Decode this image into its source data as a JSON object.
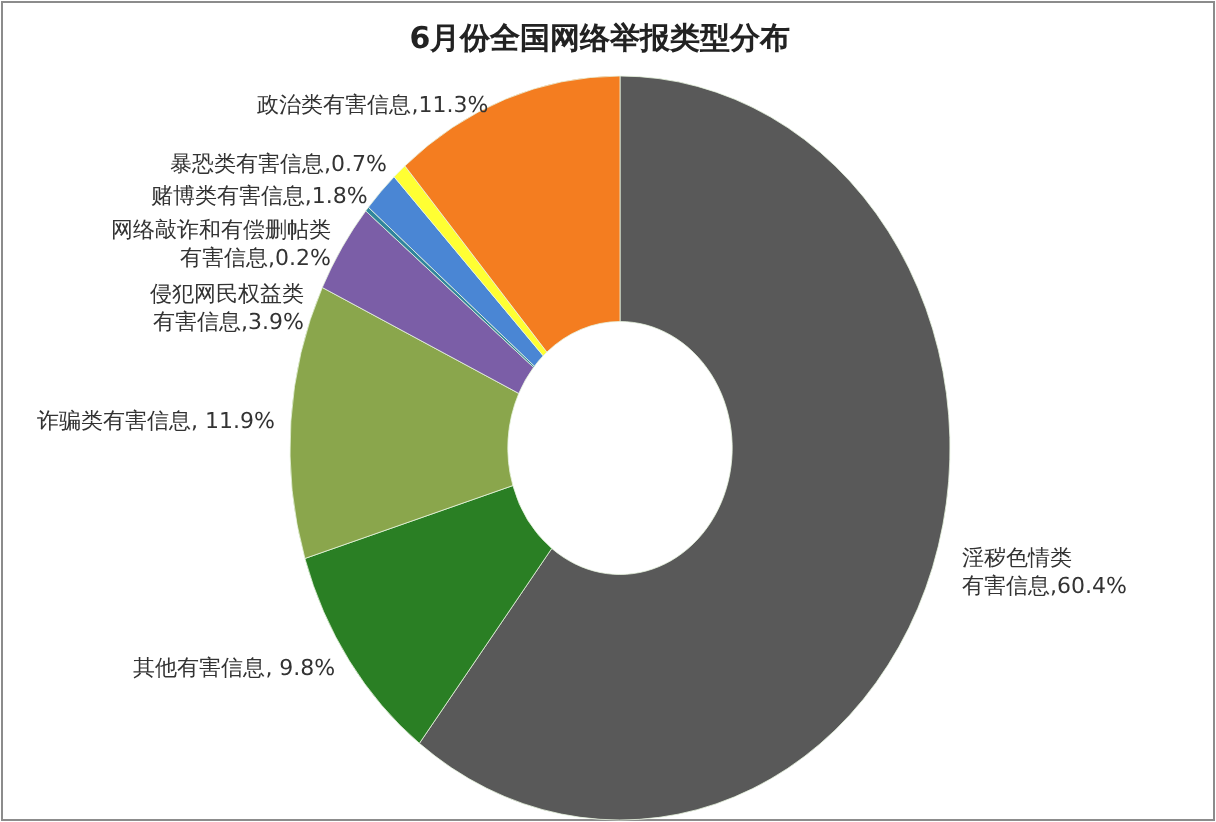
{
  "chart_data": {
    "type": "donut",
    "title": "6月份全国网络举报类型分布",
    "categories": [
      "淫秽色情类有害信息",
      "其他有害信息",
      "诈骗类有害信息",
      "侵犯网民权益类有害信息",
      "网络敲诈和有偿删帖类有害信息",
      "赌博类有害信息",
      "暴恐类有害信息",
      "政治类有害信息"
    ],
    "values": [
      60.4,
      9.8,
      11.9,
      3.9,
      0.2,
      1.8,
      0.7,
      11.3
    ],
    "colors": [
      "#595959",
      "#2a7f24",
      "#8aa64c",
      "#7b5ea7",
      "#31859c",
      "#4a86d4",
      "#ffff33",
      "#f47d20"
    ],
    "value_labels": [
      "60.4%",
      " 9.8%",
      " 11.9%",
      "3.9%",
      "0.2%",
      "1.8%",
      "0.7%",
      "11.3%"
    ]
  }
}
